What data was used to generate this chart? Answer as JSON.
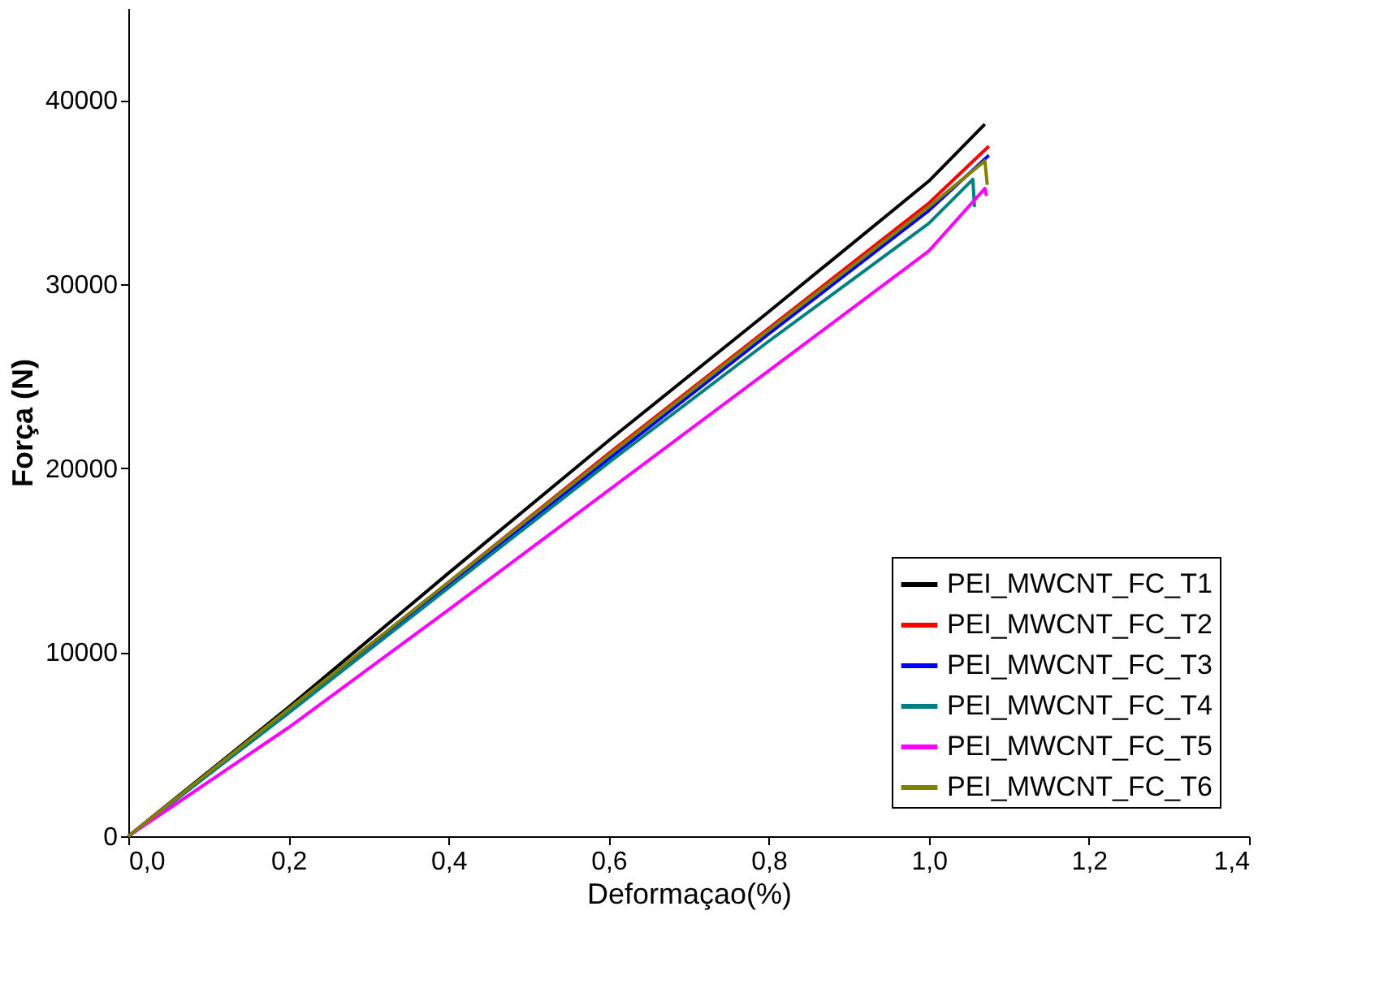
{
  "chart_data": {
    "type": "line",
    "xlabel": "Deformaçao(%)",
    "ylabel": "Força (N)",
    "xlim": [
      0,
      1.4
    ],
    "ylim": [
      0,
      45000
    ],
    "xticks": [
      {
        "value": 0,
        "label": "0,0"
      },
      {
        "value": 0.2,
        "label": "0,2"
      },
      {
        "value": 0.4,
        "label": "0,4"
      },
      {
        "value": 0.6,
        "label": "0,6"
      },
      {
        "value": 0.8,
        "label": "0,8"
      },
      {
        "value": 1.0,
        "label": "1,0"
      },
      {
        "value": 1.2,
        "label": "1,2"
      },
      {
        "value": 1.4,
        "label": "1,4"
      }
    ],
    "yticks": [
      0,
      10000,
      20000,
      30000,
      40000
    ],
    "grid": false,
    "legend": "bottom right",
    "marker": "none",
    "line_style": "solid",
    "series": [
      {
        "name": "PEI_MWCNT_FC_T1",
        "color": "#000000",
        "x": [
          0,
          0.2,
          0.4,
          0.6,
          0.8,
          1.0,
          1.07
        ],
        "values": [
          0,
          7000,
          14300,
          21500,
          28500,
          35600,
          38700
        ]
      },
      {
        "name": "PEI_MWCNT_FC_T2",
        "color": "#ff0000",
        "x": [
          0,
          0.2,
          0.4,
          0.6,
          0.8,
          1.0,
          1.075
        ],
        "values": [
          0,
          6800,
          13800,
          20800,
          27600,
          34400,
          37500
        ]
      },
      {
        "name": "PEI_MWCNT_FC_T3",
        "color": "#0000ff",
        "x": [
          0,
          0.2,
          0.4,
          0.6,
          0.8,
          1.0,
          1.075
        ],
        "values": [
          0,
          6700,
          13600,
          20500,
          27300,
          34000,
          37000
        ]
      },
      {
        "name": "PEI_MWCNT_FC_T4",
        "color": "#008080",
        "x": [
          0,
          0.2,
          0.4,
          0.6,
          0.8,
          1.0,
          1.055,
          1.057
        ],
        "values": [
          0,
          6700,
          13500,
          20300,
          26900,
          33300,
          35700,
          34200
        ]
      },
      {
        "name": "PEI_MWCNT_FC_T5",
        "color": "#ff00ff",
        "x": [
          0,
          0.2,
          0.4,
          0.6,
          0.8,
          1.0,
          1.07,
          1.072
        ],
        "values": [
          0,
          5900,
          12300,
          18800,
          25300,
          31800,
          35200,
          34800
        ]
      },
      {
        "name": "PEI_MWCNT_FC_T6",
        "color": "#808000",
        "x": [
          0,
          0.2,
          0.4,
          0.6,
          0.8,
          1.0,
          1.07,
          1.073
        ],
        "values": [
          0,
          6900,
          13800,
          20700,
          27500,
          34200,
          36700,
          35400
        ]
      }
    ]
  }
}
